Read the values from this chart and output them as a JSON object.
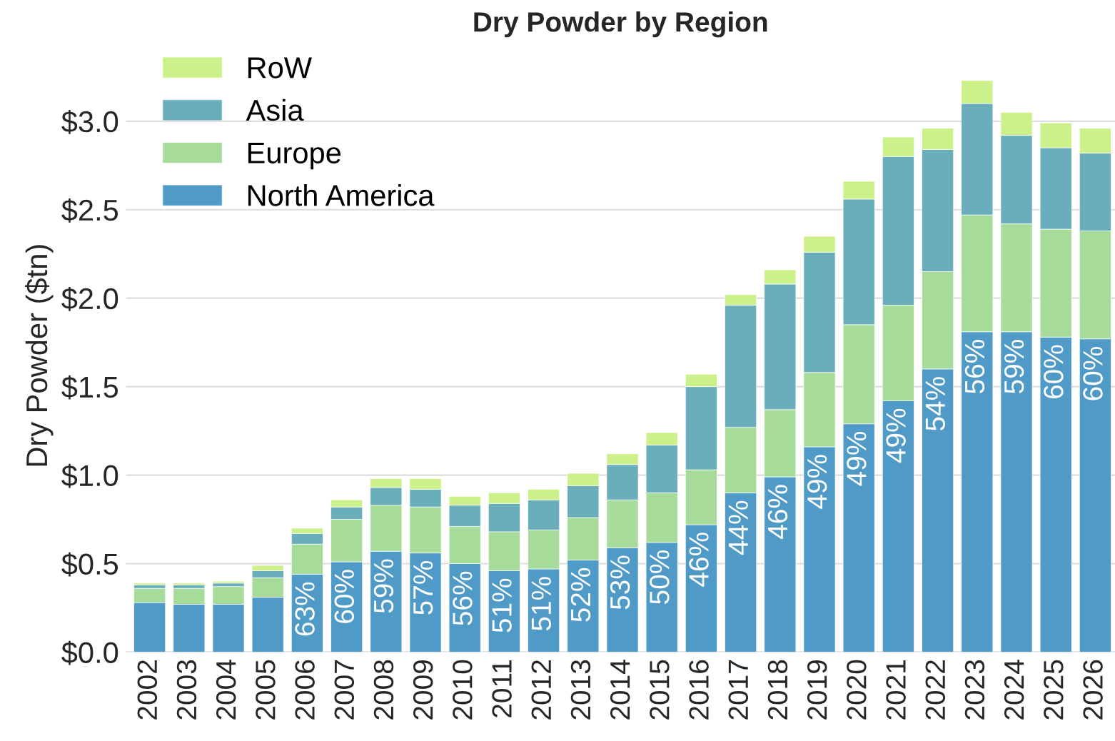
{
  "chart_data": {
    "type": "bar",
    "title": "Dry Powder by Region",
    "ylabel": "Dry Powder ($tn)",
    "stacked": true,
    "grid": "y",
    "legend": "top left",
    "categories": [
      "2002",
      "2003",
      "2004",
      "2005",
      "2006",
      "2007",
      "2008",
      "2009",
      "2010",
      "2011",
      "2012",
      "2013",
      "2014",
      "2015",
      "2016",
      "2017",
      "2018",
      "2019",
      "2020",
      "2021",
      "2022",
      "2023",
      "2024",
      "2025",
      "2026"
    ],
    "ylim": [
      0,
      3.35
    ],
    "annotations": [
      {
        "text": "63%",
        "x": "2006",
        "y": 0.44
      },
      {
        "text": "60%",
        "x": "2007",
        "y": 0.51
      },
      {
        "text": "59%",
        "x": "2008",
        "y": 0.57
      },
      {
        "text": "57%",
        "x": "2009",
        "y": 0.56
      },
      {
        "text": "56%",
        "x": "2010",
        "y": 0.5
      },
      {
        "text": "51%",
        "x": "2011",
        "y": 0.46
      },
      {
        "text": "51%",
        "x": "2012",
        "y": 0.47
      },
      {
        "text": "52%",
        "x": "2013",
        "y": 0.52
      },
      {
        "text": "53%",
        "x": "2014",
        "y": 0.59
      },
      {
        "text": "50%",
        "x": "2015",
        "y": 0.62
      },
      {
        "text": "46%",
        "x": "2016",
        "y": 0.72
      },
      {
        "text": "44%",
        "x": "2017",
        "y": 0.9
      },
      {
        "text": "46%",
        "x": "2018",
        "y": 0.99
      },
      {
        "text": "49%",
        "x": "2019",
        "y": 1.16
      },
      {
        "text": "49%",
        "x": "2020",
        "y": 1.29
      },
      {
        "text": "49%",
        "x": "2021",
        "y": 1.42
      },
      {
        "text": "54%",
        "x": "2022",
        "y": 1.6
      },
      {
        "text": "56%",
        "x": "2023",
        "y": 1.81
      },
      {
        "text": "59%",
        "x": "2024",
        "y": 1.81
      },
      {
        "text": "60%",
        "x": "2025",
        "y": 1.78
      },
      {
        "text": "60%",
        "x": "2026",
        "y": 1.77
      }
    ],
    "yticks": [
      {
        "value": 0,
        "label": "$0.0"
      },
      {
        "value": 0.5,
        "label": "$0.5"
      },
      {
        "value": 1.0,
        "label": "$1.0"
      },
      {
        "value": 1.5,
        "label": "$1.5"
      },
      {
        "value": 2.0,
        "label": "$2.0"
      },
      {
        "value": 2.5,
        "label": "$2.5"
      },
      {
        "value": 3.0,
        "label": "$3.0"
      }
    ],
    "series": [
      {
        "name": "North America",
        "color": "#4f9ac7",
        "values": [
          0.28,
          0.27,
          0.27,
          0.31,
          0.44,
          0.51,
          0.57,
          0.56,
          0.5,
          0.46,
          0.47,
          0.52,
          0.59,
          0.62,
          0.72,
          0.9,
          0.99,
          1.16,
          1.29,
          1.42,
          1.6,
          1.81,
          1.81,
          1.78,
          1.77
        ]
      },
      {
        "name": "Europe",
        "color": "#a6db9a",
        "values": [
          0.08,
          0.09,
          0.1,
          0.11,
          0.17,
          0.24,
          0.26,
          0.26,
          0.21,
          0.22,
          0.22,
          0.24,
          0.27,
          0.28,
          0.31,
          0.37,
          0.38,
          0.42,
          0.56,
          0.54,
          0.55,
          0.66,
          0.61,
          0.61,
          0.61
        ]
      },
      {
        "name": "Asia",
        "color": "#6aaebb",
        "values": [
          0.02,
          0.02,
          0.02,
          0.04,
          0.06,
          0.07,
          0.1,
          0.1,
          0.12,
          0.16,
          0.17,
          0.18,
          0.2,
          0.27,
          0.47,
          0.69,
          0.71,
          0.68,
          0.71,
          0.84,
          0.69,
          0.63,
          0.5,
          0.46,
          0.44
        ]
      },
      {
        "name": "RoW",
        "color": "#ccf08a",
        "values": [
          0.01,
          0.01,
          0.01,
          0.03,
          0.03,
          0.04,
          0.05,
          0.06,
          0.05,
          0.06,
          0.06,
          0.07,
          0.06,
          0.07,
          0.07,
          0.06,
          0.08,
          0.09,
          0.1,
          0.11,
          0.12,
          0.13,
          0.13,
          0.14,
          0.14
        ]
      }
    ]
  }
}
